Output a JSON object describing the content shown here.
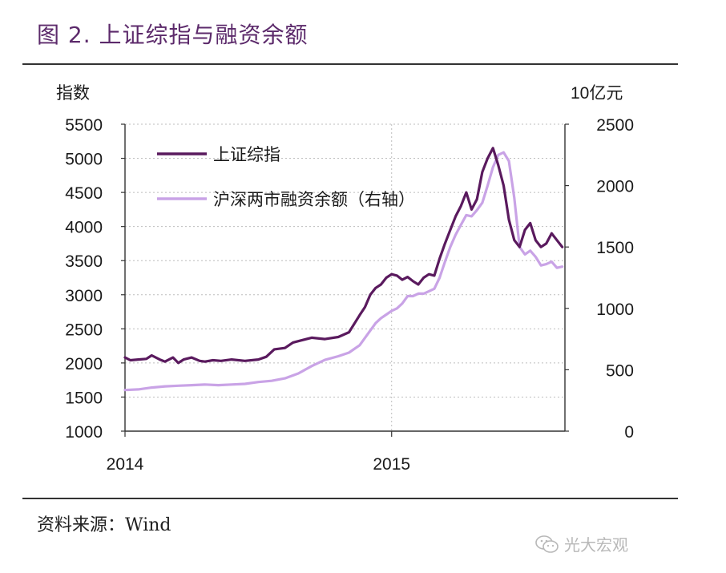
{
  "title": "图 2. 上证综指与融资余额",
  "source": "资料来源：Wind",
  "watermark": "光大宏观",
  "watermark_icon": "wechat-icon",
  "chart_data": {
    "type": "line",
    "ylabel_left": "指数",
    "ylabel_right": "10亿元",
    "ylim_left": [
      1000,
      5500
    ],
    "ylim_right": [
      0,
      2500
    ],
    "yticks_left": [
      "5500",
      "5000",
      "4500",
      "4000",
      "3500",
      "3000",
      "2500",
      "2000",
      "1500",
      "1000"
    ],
    "yticks_right": [
      "2500",
      "2000",
      "1500",
      "1000",
      "500",
      "0"
    ],
    "xticks": [
      "2014",
      "2015"
    ],
    "xlim": [
      2014.0,
      2015.65
    ],
    "grid": true,
    "legend_position": "top-left",
    "colors": {
      "index": "#5a1a5e",
      "margin": "#c9a3e6"
    },
    "series": [
      {
        "name": "上证综指",
        "axis": "left",
        "x": [
          2014.0,
          2014.02,
          2014.05,
          2014.08,
          2014.1,
          2014.13,
          2014.15,
          2014.18,
          2014.2,
          2014.22,
          2014.25,
          2014.28,
          2014.3,
          2014.33,
          2014.36,
          2014.4,
          2014.45,
          2014.5,
          2014.53,
          2014.56,
          2014.6,
          2014.63,
          2014.66,
          2014.7,
          2014.75,
          2014.8,
          2014.84,
          2014.88,
          2014.9,
          2014.92,
          2014.94,
          2014.96,
          2014.98,
          2015.0,
          2015.02,
          2015.04,
          2015.06,
          2015.08,
          2015.1,
          2015.12,
          2015.14,
          2015.16,
          2015.18,
          2015.2,
          2015.22,
          2015.24,
          2015.26,
          2015.28,
          2015.3,
          2015.32,
          2015.34,
          2015.36,
          2015.38,
          2015.4,
          2015.42,
          2015.44,
          2015.46,
          2015.48,
          2015.5,
          2015.52,
          2015.54,
          2015.56,
          2015.58,
          2015.6,
          2015.62,
          2015.64
        ],
        "values": [
          2080,
          2040,
          2050,
          2060,
          2110,
          2050,
          2020,
          2080,
          2000,
          2050,
          2080,
          2030,
          2020,
          2040,
          2030,
          2050,
          2030,
          2050,
          2090,
          2200,
          2220,
          2300,
          2330,
          2370,
          2350,
          2380,
          2450,
          2700,
          2820,
          3000,
          3100,
          3150,
          3250,
          3300,
          3280,
          3220,
          3260,
          3200,
          3150,
          3250,
          3300,
          3280,
          3530,
          3750,
          3950,
          4150,
          4300,
          4500,
          4250,
          4400,
          4800,
          5000,
          5150,
          4900,
          4600,
          4100,
          3800,
          3700,
          3950,
          4050,
          3800,
          3700,
          3750,
          3900,
          3800,
          3700
        ]
      },
      {
        "name": "沪深两市融资余额（右轴）",
        "axis": "right",
        "x": [
          2014.0,
          2014.05,
          2014.1,
          2014.15,
          2014.2,
          2014.25,
          2014.3,
          2014.35,
          2014.4,
          2014.45,
          2014.5,
          2014.55,
          2014.6,
          2014.65,
          2014.7,
          2014.75,
          2014.8,
          2014.84,
          2014.88,
          2014.9,
          2014.92,
          2014.94,
          2014.96,
          2014.98,
          2015.0,
          2015.02,
          2015.04,
          2015.06,
          2015.08,
          2015.1,
          2015.12,
          2015.14,
          2015.16,
          2015.18,
          2015.2,
          2015.22,
          2015.24,
          2015.26,
          2015.28,
          2015.3,
          2015.32,
          2015.34,
          2015.36,
          2015.38,
          2015.4,
          2015.42,
          2015.44,
          2015.46,
          2015.48,
          2015.5,
          2015.52,
          2015.54,
          2015.56,
          2015.58,
          2015.6,
          2015.62,
          2015.64
        ],
        "values": [
          335,
          340,
          355,
          365,
          370,
          375,
          380,
          375,
          380,
          385,
          400,
          410,
          430,
          470,
          530,
          580,
          610,
          640,
          700,
          760,
          820,
          880,
          920,
          950,
          980,
          1000,
          1040,
          1100,
          1100,
          1120,
          1120,
          1140,
          1160,
          1250,
          1380,
          1500,
          1600,
          1680,
          1760,
          1750,
          1800,
          1860,
          2000,
          2150,
          2250,
          2270,
          2200,
          1900,
          1500,
          1440,
          1470,
          1420,
          1350,
          1360,
          1380,
          1330,
          1340
        ]
      }
    ]
  }
}
